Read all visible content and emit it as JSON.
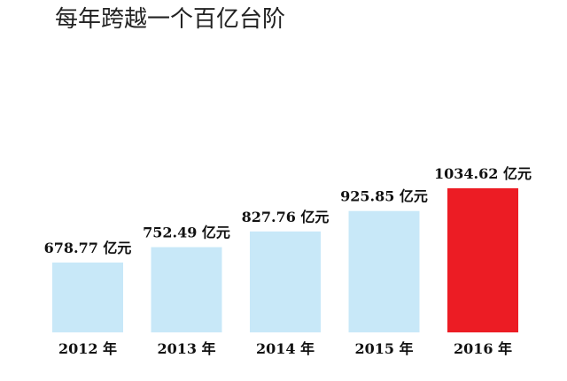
{
  "chart_data": {
    "type": "bar",
    "title": "每年跨越一个百亿台阶",
    "categories": [
      "2012 年",
      "2013 年",
      "2014 年",
      "2015 年",
      "2016 年"
    ],
    "values": [
      678.77,
      752.49,
      827.76,
      925.85,
      1034.62
    ],
    "value_labels": [
      "678.77 亿元",
      "752.49 亿元",
      "827.76 亿元",
      "925.85 亿元",
      "1034.62 亿元"
    ],
    "unit": "亿元",
    "bar_colors": [
      "#c8e8f8",
      "#c8e8f8",
      "#c8e8f8",
      "#c8e8f8",
      "#ec1c24"
    ],
    "grid": false,
    "legend": "none"
  }
}
